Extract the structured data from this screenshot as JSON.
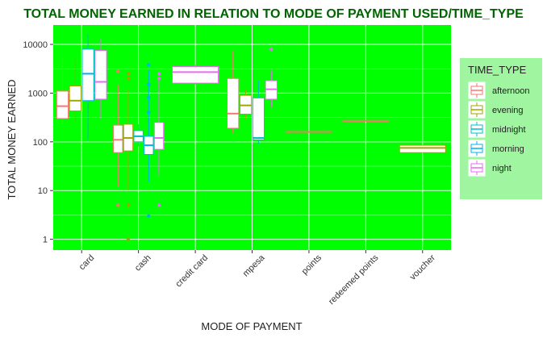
{
  "chart_data": {
    "type": "box",
    "title": "TOTAL MONEY EARNED IN RELATION TO MODE OF PAYMENT USED/TIME_TYPE",
    "xlabel": "MODE OF PAYMENT",
    "ylabel": "TOTAL MONEY EARNED",
    "y_scale": "log10",
    "ylim": [
      0.6,
      25000
    ],
    "y_ticks": [
      1,
      10,
      100,
      1000,
      10000
    ],
    "y_tick_labels": [
      "1",
      "10",
      "100",
      "1000",
      "10000"
    ],
    "categories": [
      "card",
      "cash",
      "credit card",
      "mpesa",
      "points",
      "redeemed points",
      "voucher"
    ],
    "legend": {
      "title": "TIME_TYPE",
      "position": "right",
      "entries": [
        "afternoon",
        "evening",
        "midnight",
        "morning",
        "night"
      ]
    },
    "panel_background": "#00ff00",
    "legend_background": "#a0f5a0",
    "grid": true,
    "series_colors": {
      "afternoon": "#f8766d",
      "evening": "#a3a500",
      "midnight": "#00bfc4",
      "morning": "#00b0f6",
      "night": "#e76bf3"
    },
    "boxes": [
      {
        "category": "card",
        "series": "afternoon",
        "min": 220,
        "q1": 300,
        "median": 540,
        "q3": 1100,
        "max": 5500,
        "outliers": []
      },
      {
        "category": "card",
        "series": "evening",
        "min": 260,
        "q1": 430,
        "median": 700,
        "q3": 1400,
        "max": 5000,
        "outliers": []
      },
      {
        "category": "card",
        "series": "morning",
        "min": 110,
        "q1": 700,
        "median": 2500,
        "q3": 8000,
        "max": 16000,
        "outliers": []
      },
      {
        "category": "card",
        "series": "night",
        "min": 300,
        "q1": 750,
        "median": 1700,
        "q3": 7500,
        "max": 13000,
        "outliers": []
      },
      {
        "category": "cash",
        "series": "afternoon",
        "min": 12,
        "q1": 60,
        "median": 110,
        "q3": 220,
        "max": 1500,
        "outliers": [
          5,
          2800
        ]
      },
      {
        "category": "cash",
        "series": "evening",
        "min": 10,
        "q1": 65,
        "median": 120,
        "q3": 230,
        "max": 1200,
        "outliers": [
          1,
          5,
          2000,
          2500
        ]
      },
      {
        "category": "cash",
        "series": "midnight",
        "min": 80,
        "q1": 100,
        "median": 130,
        "q3": 170,
        "max": 230,
        "outliers": []
      },
      {
        "category": "cash",
        "series": "morning",
        "min": 15,
        "q1": 55,
        "median": 85,
        "q3": 130,
        "max": 3000,
        "outliers": [
          3,
          400,
          800,
          1500,
          3800
        ]
      },
      {
        "category": "cash",
        "series": "night",
        "min": 20,
        "q1": 70,
        "median": 120,
        "q3": 250,
        "max": 1800,
        "outliers": [
          5,
          2000,
          2500
        ]
      },
      {
        "category": "credit card",
        "series": "night",
        "min": 1500,
        "q1": 1600,
        "median": 2700,
        "q3": 3500,
        "max": 3800,
        "outliers": []
      },
      {
        "category": "mpesa",
        "series": "afternoon",
        "min": 150,
        "q1": 190,
        "median": 380,
        "q3": 2000,
        "max": 7500,
        "outliers": []
      },
      {
        "category": "mpesa",
        "series": "evening",
        "min": 300,
        "q1": 370,
        "median": 560,
        "q3": 900,
        "max": 1200,
        "outliers": []
      },
      {
        "category": "mpesa",
        "series": "midnight",
        "min": 90,
        "q1": 110,
        "median": 120,
        "q3": 800,
        "max": 1800,
        "outliers": []
      },
      {
        "category": "mpesa",
        "series": "night",
        "min": 500,
        "q1": 750,
        "median": 1200,
        "q3": 1800,
        "max": 3000,
        "outliers": [
          8000
        ]
      },
      {
        "category": "points",
        "series": "afternoon",
        "min": 160,
        "q1": 160,
        "median": 160,
        "q3": 160,
        "max": 160,
        "outliers": []
      },
      {
        "category": "redeemed points",
        "series": "afternoon",
        "min": 270,
        "q1": 270,
        "median": 270,
        "q3": 270,
        "max": 270,
        "outliers": []
      },
      {
        "category": "voucher",
        "series": "evening",
        "min": 60,
        "q1": 60,
        "median": 75,
        "q3": 85,
        "max": 85,
        "outliers": []
      }
    ]
  }
}
